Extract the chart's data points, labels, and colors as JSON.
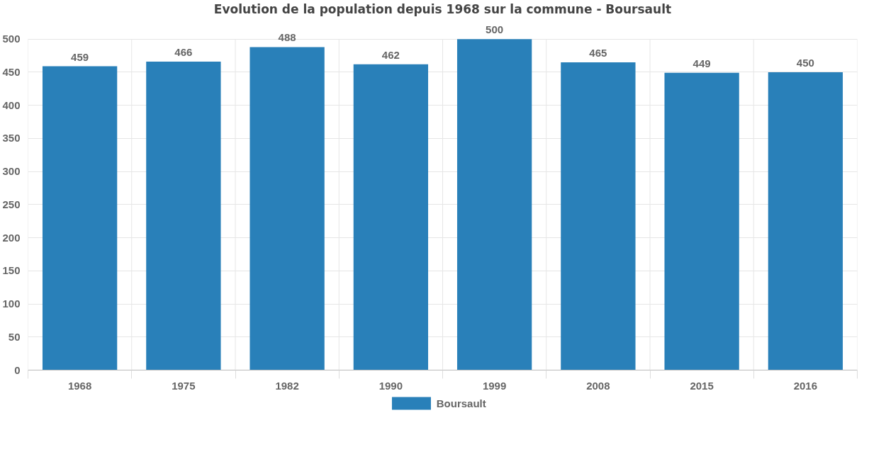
{
  "chart_data": {
    "type": "bar",
    "title": "Evolution de la population depuis 1968 sur la commune - Boursault",
    "categories": [
      "1968",
      "1975",
      "1982",
      "1990",
      "1999",
      "2008",
      "2015",
      "2016"
    ],
    "series": [
      {
        "name": "Boursault",
        "color": "#2980b9",
        "values": [
          459,
          466,
          488,
          462,
          500,
          465,
          449,
          450
        ]
      }
    ],
    "ylim": [
      0,
      500
    ],
    "yticks": [
      0,
      50,
      100,
      150,
      200,
      250,
      300,
      350,
      400,
      450,
      500
    ],
    "grid": true,
    "legend": "bottom",
    "data_labels": true
  }
}
